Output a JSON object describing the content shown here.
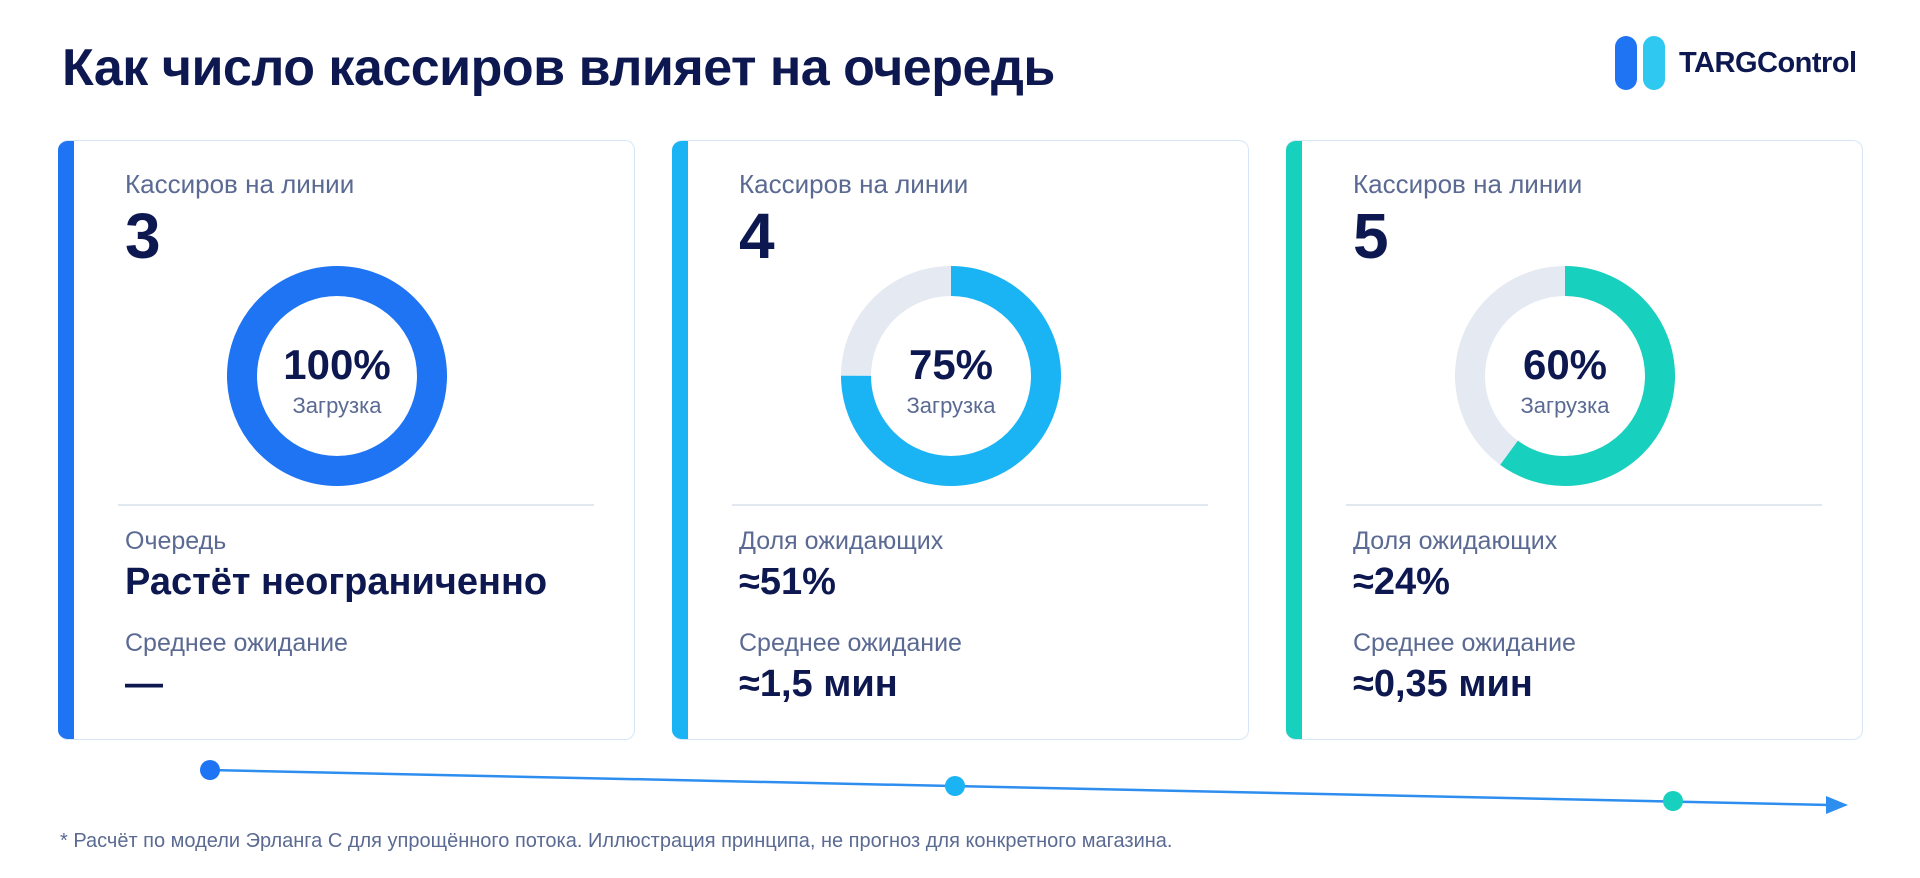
{
  "title": "Как число кассиров влияет на очередь",
  "logo": {
    "text": "TARGControl",
    "colors": [
      "#1f74f3",
      "#2fc8f0"
    ]
  },
  "cards": [
    {
      "label": "Кассиров на линии",
      "count": "3",
      "load_percent": 100,
      "load_text": "100%",
      "load_label": "Загрузка",
      "accent": "#1f74f3",
      "metric1_label": "Очередь",
      "metric1_value": "Растёт неограниченно",
      "metric2_label": "Среднее ожидание",
      "metric2_value": "—"
    },
    {
      "label": "Кассиров на линии",
      "count": "4",
      "load_percent": 75,
      "load_text": "75%",
      "load_label": "Загрузка",
      "accent": "#1ab4f5",
      "metric1_label": "Доля ожидающих",
      "metric1_value": "≈51%",
      "metric2_label": "Среднее ожидание",
      "metric2_value": "≈1,5 мин"
    },
    {
      "label": "Кассиров на линии",
      "count": "5",
      "load_percent": 60,
      "load_text": "60%",
      "load_label": "Загрузка",
      "accent": "#17d0bd",
      "metric1_label": "Доля ожидающих",
      "metric1_value": "≈24%",
      "metric2_label": "Среднее ожидание",
      "metric2_value": "≈0,35 мин"
    }
  ],
  "donut_track_color": "#e4e9f2",
  "timeline_color": "#2d8ef0",
  "footnote": "* Расчёт по модели Эрланга С для упрощённого потока. Иллюстрация принципа, не прогноз для конкретного магазина."
}
